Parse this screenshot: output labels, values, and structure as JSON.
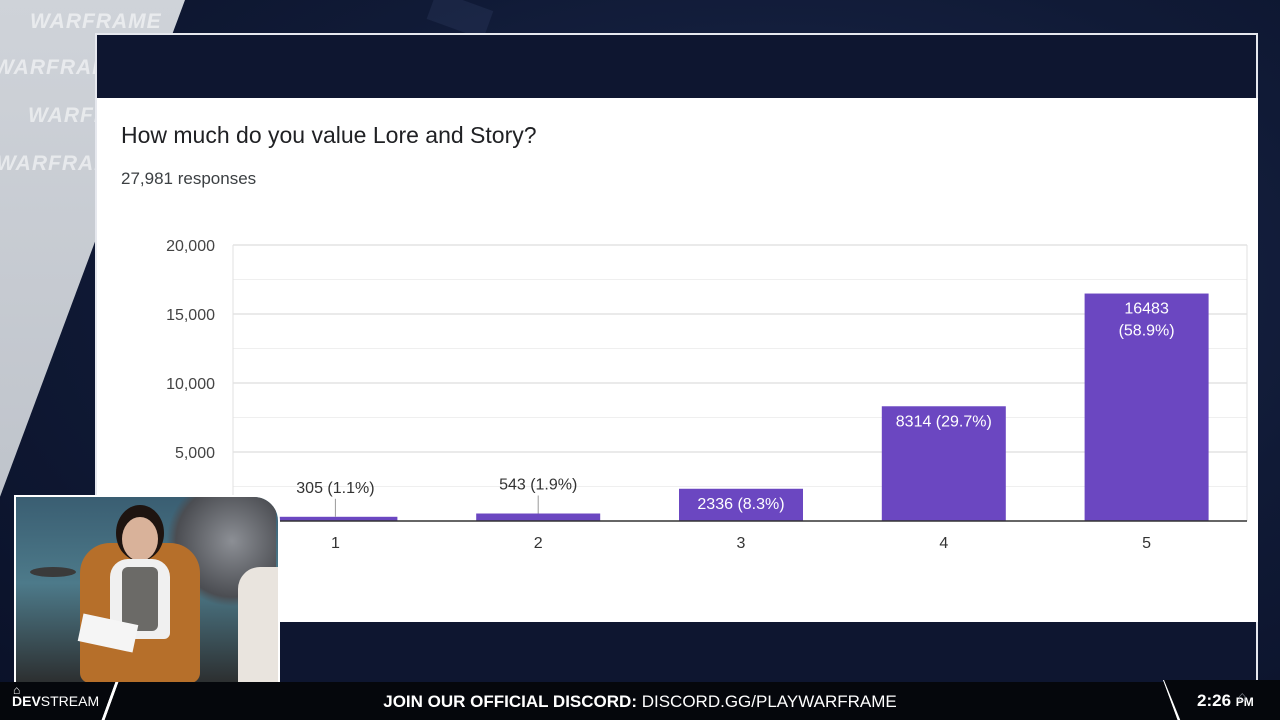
{
  "watermark": {
    "text": "WARFRAME"
  },
  "survey": {
    "question": "How much do you value Lore and Story?",
    "responses": "27,981 responses"
  },
  "chart_data": {
    "type": "bar",
    "title": "How much do you value Lore and Story?",
    "categories": [
      "1",
      "2",
      "3",
      "4",
      "5"
    ],
    "values": [
      305,
      543,
      2336,
      8314,
      16483
    ],
    "data_labels": [
      "305 (1.1%)",
      "543 (1.9%)",
      "2336 (8.3%)",
      "8314 (29.7%)",
      "16483\n(58.9%)"
    ],
    "yticks": [
      "20,000",
      "15,000",
      "10,000",
      "5,000"
    ],
    "ytick_values": [
      20000,
      15000,
      10000,
      5000
    ],
    "ylim": [
      0,
      20000
    ],
    "grid": true,
    "bar_color": "#6b47c1"
  },
  "bottom_bar": {
    "logo_icon": "warframe-lotus-icon",
    "logo_text_bold": "DEV",
    "logo_text": "STREAM",
    "discord_label": "JOIN OUR OFFICIAL DISCORD:",
    "discord_url": "DISCORD.GG/PLAYWARFRAME",
    "time": "2:26",
    "ampm": "PM",
    "lotus_icon": "warframe-lotus-icon"
  }
}
